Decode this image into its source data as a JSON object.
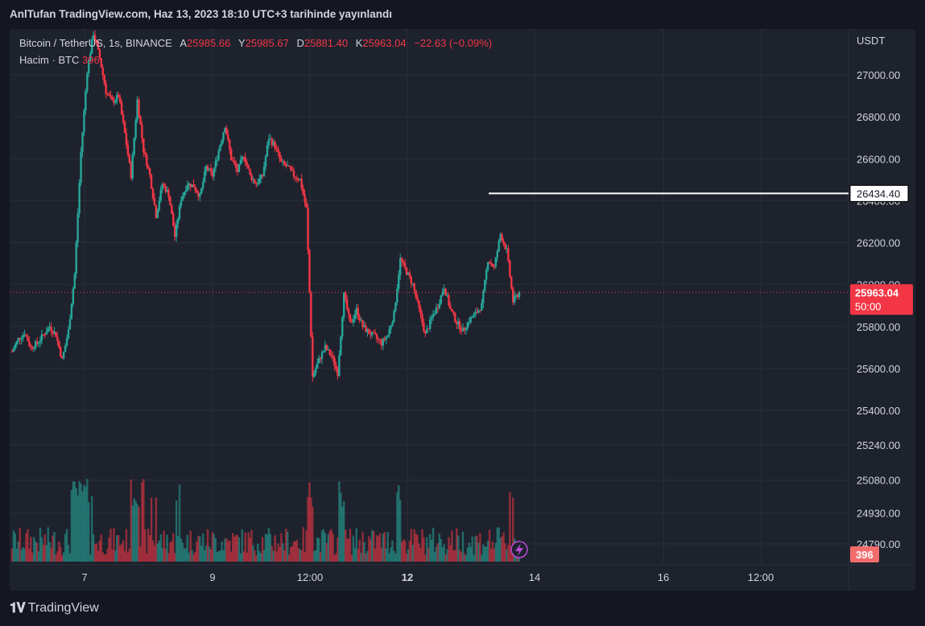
{
  "header": {
    "text": "AnlTufan TradingView.com, Haz 13, 2023 18:10 UTC+3 tarihinde yayınlandı"
  },
  "legend": {
    "symbol": "Bitcoin / TetherUS, 1s, BINANCE",
    "open_label": "A",
    "open_value": "25985.66",
    "high_label": "Y",
    "high_value": "25985.67",
    "low_label": "D",
    "low_value": "25881.40",
    "close_label": "K",
    "close_value": "25963.04",
    "change": "−22.63 (−0.09%)",
    "volume_label": "Hacim · BTC",
    "volume_value": "396"
  },
  "footer": {
    "brand": "TradingView"
  },
  "colors": {
    "up": "#26a69a",
    "down": "#f23645",
    "background": "#1e222d",
    "grid": "#2a2e39",
    "text": "#d1d4dc",
    "page": "#141720"
  },
  "chart_data": {
    "type": "candlestick",
    "currency_label": "USDT",
    "price_ticks": [
      27000,
      26800,
      26600,
      26400,
      26200,
      26000,
      25800,
      25600,
      25400
    ],
    "volume_ticks": [
      25240,
      25080,
      24930,
      24790
    ],
    "x_ticks": [
      "7",
      "9",
      "12:00",
      "12",
      "14",
      "16",
      "12:00"
    ],
    "ylim": [
      25340,
      27220
    ],
    "current_price": "25963.04",
    "current_countdown": "50:00",
    "horizontal_line": {
      "price": "26434.40"
    },
    "last_volume": "396",
    "close_series": [
      25680,
      25740,
      25770,
      25700,
      25720,
      25760,
      25800,
      25760,
      25640,
      25780,
      26050,
      26630,
      27020,
      27200,
      27080,
      26920,
      26870,
      26900,
      26720,
      26520,
      26880,
      26640,
      26520,
      26330,
      26480,
      26430,
      26230,
      26410,
      26480,
      26470,
      26420,
      26560,
      26520,
      26640,
      26760,
      26600,
      26540,
      26620,
      26520,
      26480,
      26520,
      26700,
      26660,
      26580,
      26560,
      26520,
      26500,
      26360,
      25560,
      25640,
      25700,
      25660,
      25580,
      25950,
      25810,
      25880,
      25800,
      25770,
      25750,
      25720,
      25760,
      25860,
      26120,
      26060,
      26000,
      25880,
      25760,
      25840,
      25900,
      25990,
      25880,
      25820,
      25780,
      25830,
      25860,
      25900,
      26120,
      26080,
      26240,
      26160,
      25920,
      25963
    ]
  }
}
